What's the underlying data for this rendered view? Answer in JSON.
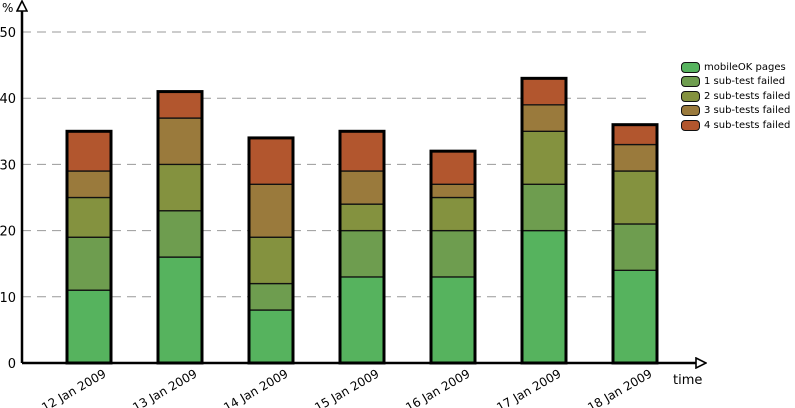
{
  "chart_data": {
    "type": "bar",
    "stacked": true,
    "ylabel": "%",
    "xlabel": "time",
    "ylim": [
      0,
      50
    ],
    "yticks": [
      "0",
      "10",
      "20",
      "30",
      "40",
      "50"
    ],
    "grid": true,
    "legend_position": "right",
    "categories": [
      "12 Jan 2009",
      "13 Jan 2009",
      "14 Jan 2009",
      "15 Jan 2009",
      "16 Jan 2009",
      "17 Jan 2009",
      "18 Jan 2009"
    ],
    "series": [
      {
        "name": "mobileOK pages",
        "color": "#56b35e",
        "values": [
          11,
          16,
          8,
          13,
          13,
          20,
          14
        ]
      },
      {
        "name": "1 sub-test failed",
        "color": "#6e9d4f",
        "values": [
          8,
          7,
          4,
          7,
          7,
          7,
          7
        ]
      },
      {
        "name": "2 sub-tests failed",
        "color": "#84923f",
        "values": [
          6,
          7,
          7,
          4,
          5,
          8,
          8
        ]
      },
      {
        "name": "3 sub-tests failed",
        "color": "#9a7a3c",
        "values": [
          4,
          7,
          8,
          5,
          2,
          4,
          4
        ]
      },
      {
        "name": "4 sub-tests failed",
        "color": "#b2562e",
        "values": [
          6,
          4,
          7,
          6,
          5,
          4,
          3
        ]
      }
    ]
  }
}
